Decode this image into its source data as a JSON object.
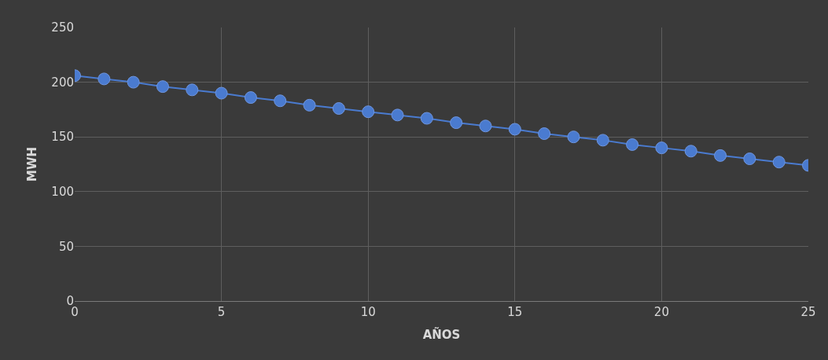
{
  "chart_data": {
    "type": "line",
    "xlabel": "AÑOS",
    "ylabel": "MWH",
    "x": [
      0,
      1,
      2,
      3,
      4,
      5,
      6,
      7,
      8,
      9,
      10,
      11,
      12,
      13,
      14,
      15,
      16,
      17,
      18,
      19,
      20,
      21,
      22,
      23,
      24,
      25
    ],
    "series": [
      {
        "color": "#4a7bd0",
        "values": [
          206,
          203,
          200,
          196,
          193,
          190,
          186,
          183,
          179,
          176,
          173,
          170,
          167,
          163,
          160,
          157,
          153,
          150,
          147,
          143,
          140,
          137,
          133,
          130,
          127,
          124
        ]
      }
    ],
    "xlim": [
      0,
      25
    ],
    "xticks": [
      0,
      5,
      10,
      15,
      20,
      25
    ],
    "ylim": [
      0,
      250
    ],
    "yticks": [
      0,
      50,
      100,
      150,
      200,
      250
    ],
    "grid": true,
    "marker": "circle",
    "line_style": "solid"
  }
}
